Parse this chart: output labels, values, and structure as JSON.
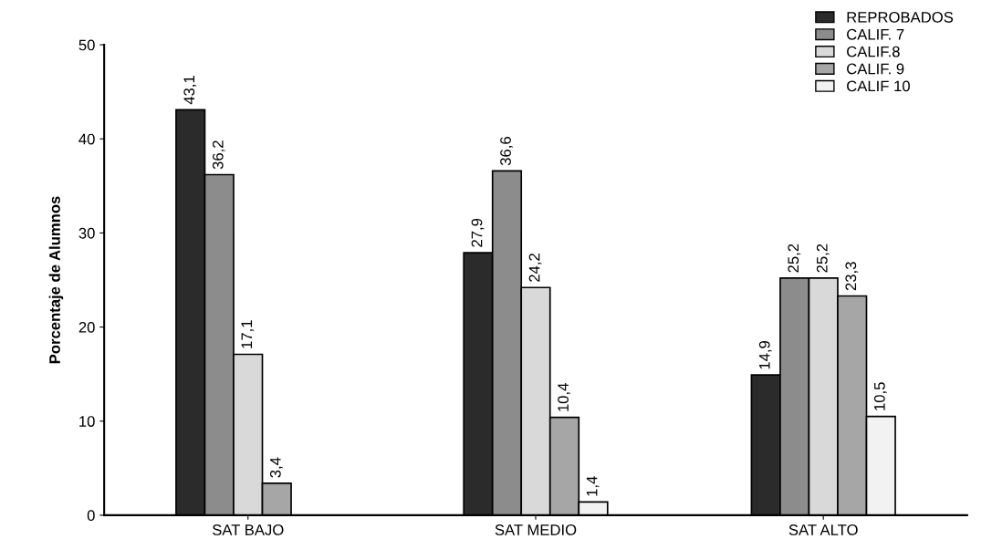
{
  "chart_data": {
    "type": "bar",
    "ylabel": "Porcentaje de Alumnos",
    "categories": [
      "SAT BAJO",
      "SAT MEDIO",
      "SAT ALTO"
    ],
    "series": [
      {
        "name": "REPROBADOS",
        "color": "#2b2b2b",
        "values": [
          43.1,
          27.9,
          14.9
        ],
        "value_labels": [
          "43,1",
          "27,9",
          "14,9"
        ]
      },
      {
        "name": "CALIF. 7",
        "color": "#8c8c8c",
        "values": [
          36.2,
          36.6,
          25.2
        ],
        "value_labels": [
          "36,2",
          "36,6",
          "25,2"
        ]
      },
      {
        "name": "CALIF.8",
        "color": "#d9d9d9",
        "values": [
          17.1,
          24.2,
          25.2
        ],
        "value_labels": [
          "17,1",
          "24,2",
          "25,2"
        ]
      },
      {
        "name": "CALIF. 9",
        "color": "#a6a6a6",
        "values": [
          3.4,
          10.4,
          23.3
        ],
        "value_labels": [
          "3,4",
          "10,4",
          "23,3"
        ]
      },
      {
        "name": "CALIF 10",
        "color": "#f2f2f2",
        "values": [
          null,
          1.4,
          10.5
        ],
        "value_labels": [
          null,
          "1,4",
          "10,5"
        ]
      }
    ],
    "ylim": [
      0,
      50
    ],
    "yticks": [
      0,
      10,
      20,
      30,
      40,
      50
    ],
    "grid": false,
    "legend": "top right"
  }
}
